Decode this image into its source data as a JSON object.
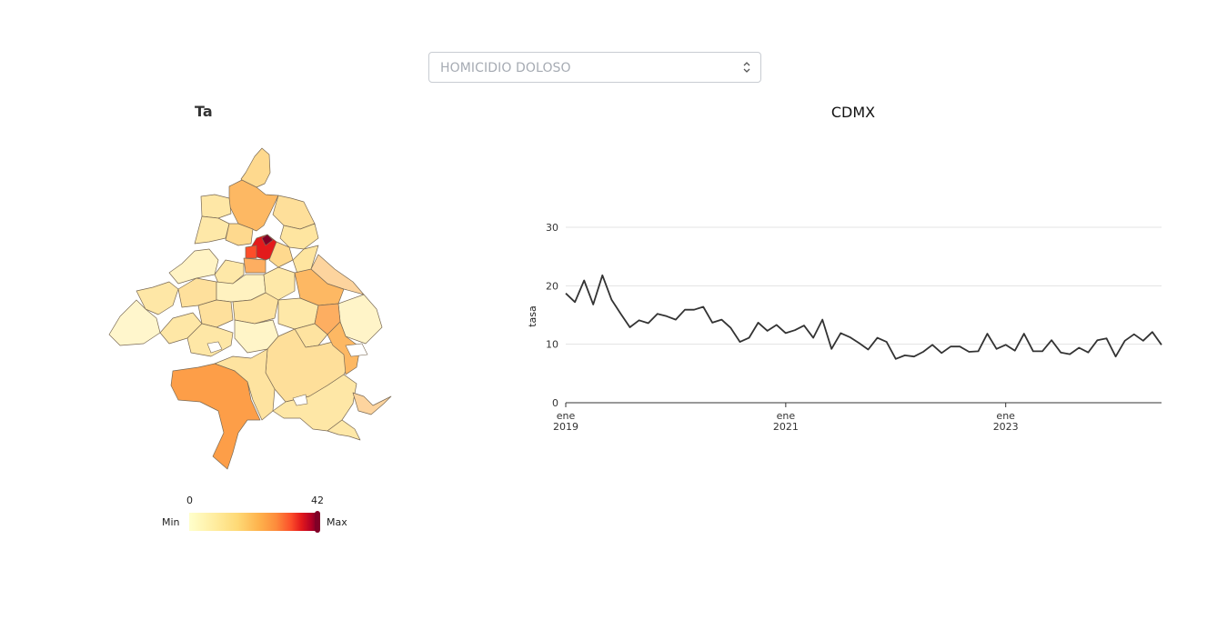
{
  "filter": {
    "selected": "HOMICIDIO DOLOSO"
  },
  "map": {
    "title": "Ta",
    "legend": {
      "min_value": "0",
      "max_value": "42",
      "min_label": "Min",
      "max_label": "Max"
    },
    "colors": {
      "low": "#ffffcc",
      "mid": "#fd8d3c",
      "high": "#800026"
    }
  },
  "chart_data": {
    "type": "line",
    "title": "CDMX",
    "xlabel": "",
    "ylabel": "tasa",
    "ylim": [
      0,
      30
    ],
    "yticks": [
      0,
      10,
      20,
      30
    ],
    "xticks": [
      {
        "date": "2019-01",
        "line1": "ene",
        "line2": "2019"
      },
      {
        "date": "2021-01",
        "line1": "ene",
        "line2": "2021"
      },
      {
        "date": "2023-01",
        "line1": "ene",
        "line2": "2023"
      }
    ],
    "grid": true,
    "x_start": "2019-01",
    "x_end": "2024-06",
    "series": [
      {
        "color": "#333333",
        "values": [
          18.7,
          17.2,
          20.9,
          16.8,
          21.8,
          17.6,
          15.2,
          12.9,
          14.1,
          13.6,
          15.2,
          14.8,
          14.2,
          15.9,
          15.9,
          16.4,
          13.7,
          14.2,
          12.8,
          10.4,
          11.1,
          13.7,
          12.3,
          13.3,
          11.9,
          12.4,
          13.2,
          11.1,
          14.2,
          9.2,
          11.9,
          11.2,
          10.2,
          9.1,
          11.1,
          10.4,
          7.5,
          8.1,
          7.9,
          8.7,
          9.9,
          8.5,
          9.6,
          9.6,
          8.7,
          8.8,
          11.8,
          9.2,
          9.9,
          8.9,
          11.8,
          8.8,
          8.8,
          10.7,
          8.6,
          8.3,
          9.4,
          8.6,
          10.7,
          11.0,
          7.9,
          10.6,
          11.7,
          10.6,
          12.1,
          9.9
        ]
      }
    ]
  }
}
